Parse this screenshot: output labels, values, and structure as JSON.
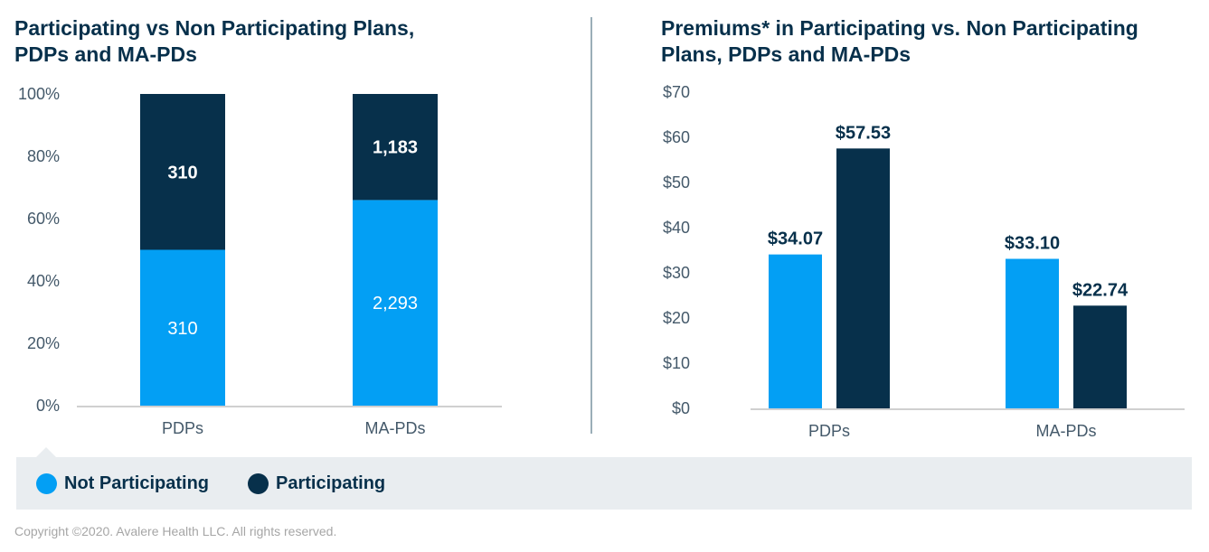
{
  "colors": {
    "not_participating": "#039ff4",
    "participating": "#07304b",
    "axis_line": "#d0d0d0",
    "divider": "#9aaeb8",
    "legend_bg": "#e9edf0"
  },
  "legend": {
    "items": [
      {
        "label": "Not Participating",
        "color": "#039ff4"
      },
      {
        "label": "Participating",
        "color": "#07304b"
      }
    ]
  },
  "footer": {
    "copyright": "Copyright ©2020. Avalere Health LLC. All rights reserved."
  },
  "chart_data": [
    {
      "type": "bar",
      "stacked": true,
      "normalized": true,
      "title": "Participating vs Non Participating Plans, PDPs and MA-PDs",
      "title_lines": [
        "Participating vs Non Participating Plans,",
        "PDPs and MA-PDs"
      ],
      "xlabel": "",
      "ylabel": "",
      "ylim": [
        0,
        100
      ],
      "yticks": [
        0,
        20,
        40,
        60,
        80,
        100
      ],
      "ytick_labels": [
        "0%",
        "20%",
        "40%",
        "60%",
        "80%",
        "100%"
      ],
      "categories": [
        "PDPs",
        "MA-PDs"
      ],
      "series": [
        {
          "name": "Not Participating",
          "values": [
            310,
            2293
          ],
          "labels": [
            "310",
            "2,293"
          ]
        },
        {
          "name": "Participating",
          "values": [
            310,
            1183
          ],
          "labels": [
            "310",
            "1,183"
          ]
        }
      ],
      "grid": false,
      "legend": "bottom-left"
    },
    {
      "type": "bar",
      "stacked": false,
      "title": "Premiums* in Participating vs. Non Participating Plans, PDPs and MA-PDs",
      "title_lines": [
        "Premiums* in Participating vs. Non Participating",
        "Plans, PDPs and MA-PDs"
      ],
      "xlabel": "",
      "ylabel": "",
      "ylim": [
        0,
        70
      ],
      "yticks": [
        0,
        10,
        20,
        30,
        40,
        50,
        60,
        70
      ],
      "ytick_labels": [
        "$0",
        "$10",
        "$20",
        "$30",
        "$40",
        "$50",
        "$60",
        "$70"
      ],
      "categories": [
        "PDPs",
        "MA-PDs"
      ],
      "series": [
        {
          "name": "Not Participating",
          "values": [
            34.07,
            33.1
          ],
          "labels": [
            "$34.07",
            "$33.10"
          ]
        },
        {
          "name": "Participating",
          "values": [
            57.53,
            22.74
          ],
          "labels": [
            "$57.53",
            "$22.74"
          ]
        }
      ],
      "grid": false,
      "legend": "bottom-left"
    }
  ]
}
